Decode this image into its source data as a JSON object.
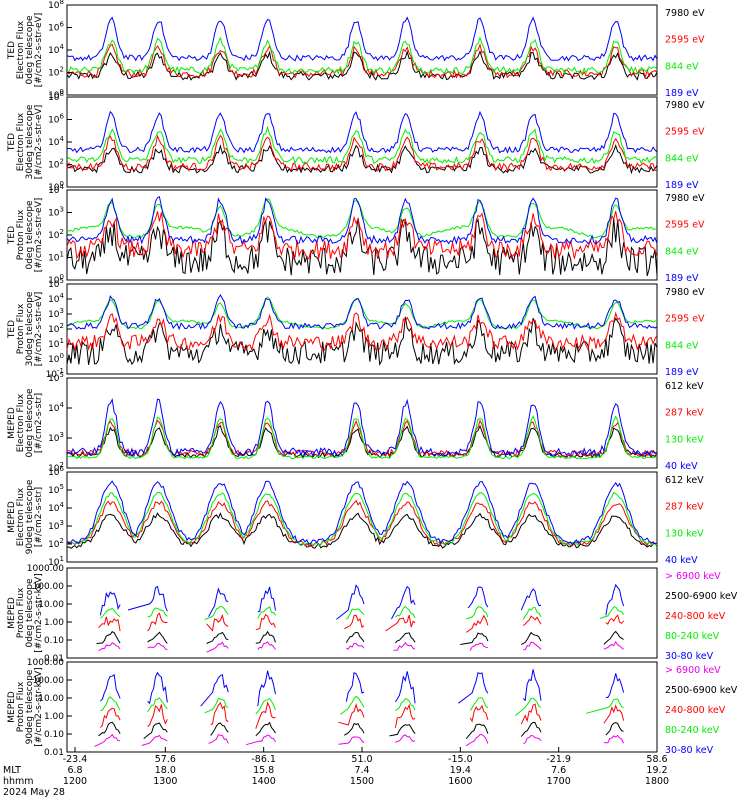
{
  "chart_data": {
    "type": "line",
    "date": "2024 May 28",
    "x_axis": {
      "rows": [
        {
          "label": "MLT",
          "values": [
            "6.8",
            "18.0",
            "15.8",
            "7.4",
            "19.4",
            "7.6",
            "19.2"
          ]
        },
        {
          "label": "hhmm",
          "values": [
            "1200",
            "1300",
            "1400",
            "1500",
            "1600",
            "1700",
            "1800"
          ]
        }
      ],
      "top_values": [
        "-23.4",
        "57.6",
        "-86.1",
        "51.0",
        "-15.0",
        "-21.9",
        "58.6"
      ]
    },
    "panels": [
      {
        "ylabel": [
          "TED",
          "Electron Flux",
          "0deg telescope",
          "[#/cm2-s-str-eV]"
        ],
        "ticks": [
          "10^8",
          "10^6",
          "10^4",
          "10^2",
          "10^0"
        ],
        "ylim_exp": [
          0,
          8
        ],
        "series": [
          {
            "name": "7980 eV",
            "color": "#000000",
            "base": 1.7,
            "peak": 3.6,
            "noise": 0.35,
            "kind": "flux"
          },
          {
            "name": "2595 eV",
            "color": "#ff0000",
            "base": 1.9,
            "peak": 4.2,
            "noise": 0.35,
            "kind": "flux"
          },
          {
            "name": "844 eV",
            "color": "#00ee00",
            "base": 2.2,
            "peak": 4.8,
            "noise": 0.3,
            "kind": "flux"
          },
          {
            "name": "189 eV",
            "color": "#0000ff",
            "base": 3.3,
            "peak": 6.7,
            "noise": 0.25,
            "kind": "flux"
          }
        ]
      },
      {
        "ylabel": [
          "TED",
          "Electron Flux",
          "30deg telescope",
          "[#/cm2-s-str-eV]"
        ],
        "ticks": [
          "10^8",
          "10^6",
          "10^4",
          "10^2",
          "10^0"
        ],
        "ylim_exp": [
          0,
          8
        ],
        "series": [
          {
            "name": "7980 eV",
            "color": "#000000",
            "base": 1.6,
            "peak": 3.4,
            "noise": 0.35,
            "kind": "flux"
          },
          {
            "name": "2595 eV",
            "color": "#ff0000",
            "base": 1.8,
            "peak": 4.3,
            "noise": 0.35,
            "kind": "flux"
          },
          {
            "name": "844 eV",
            "color": "#00ee00",
            "base": 2.4,
            "peak": 5.0,
            "noise": 0.3,
            "kind": "flux"
          },
          {
            "name": "189 eV",
            "color": "#0000ff",
            "base": 3.3,
            "peak": 6.5,
            "noise": 0.25,
            "kind": "flux"
          }
        ]
      },
      {
        "ylabel": [
          "TED",
          "Proton Flux",
          "0deg telescope",
          "[#/cm2-s-str-eV]"
        ],
        "ticks": [
          "10^4",
          "10^3",
          "10^2",
          "10^1",
          "10^0"
        ],
        "ylim_exp": [
          -0.4,
          4.3
        ],
        "series": [
          {
            "name": "7980 eV",
            "color": "#000000",
            "base": 0.6,
            "peak": 2.2,
            "noise": 0.8,
            "kind": "proton"
          },
          {
            "name": "2595 eV",
            "color": "#ff0000",
            "base": 1.2,
            "peak": 2.9,
            "noise": 0.5,
            "kind": "proton"
          },
          {
            "name": "844 eV",
            "color": "#00ee00",
            "base": 2.1,
            "peak": 3.6,
            "noise": 0.15,
            "kind": "proton_green"
          },
          {
            "name": "189 eV",
            "color": "#0000ff",
            "base": 1.7,
            "peak": 3.8,
            "noise": 0.2,
            "kind": "proton"
          }
        ]
      },
      {
        "ylabel": [
          "TED",
          "Proton Flux",
          "30deg telescope",
          "[#/cm2-s-str-eV]"
        ],
        "ticks": [
          "10^5",
          "10^4",
          "10^3",
          "10^2",
          "10^1",
          "10^0",
          "10^-1"
        ],
        "ylim_exp": [
          -1,
          5
        ],
        "series": [
          {
            "name": "7980 eV",
            "color": "#000000",
            "base": 0.4,
            "peak": 2.1,
            "noise": 0.8,
            "kind": "proton"
          },
          {
            "name": "2595 eV",
            "color": "#ff0000",
            "base": 1.1,
            "peak": 2.8,
            "noise": 0.5,
            "kind": "proton"
          },
          {
            "name": "844 eV",
            "color": "#00ee00",
            "base": 2.3,
            "peak": 3.9,
            "noise": 0.15,
            "kind": "proton_green"
          },
          {
            "name": "189 eV",
            "color": "#0000ff",
            "base": 2.2,
            "peak": 4.1,
            "noise": 0.2,
            "kind": "proton"
          }
        ]
      },
      {
        "ylabel": [
          "MEPED",
          "Electron Flux",
          "0deg telescope",
          "[#/cm2-s-str]"
        ],
        "ticks": [
          "10^5",
          "10^4",
          "10^3",
          "10^2"
        ],
        "ylim_exp": [
          1.6,
          5
        ],
        "series": [
          {
            "name": "612 keV",
            "color": "#000000",
            "base": 2.1,
            "peak": 3.1,
            "noise": 0.1,
            "kind": "meped0"
          },
          {
            "name": "287 keV",
            "color": "#ff0000",
            "base": 2.15,
            "peak": 3.3,
            "noise": 0.12,
            "kind": "meped0"
          },
          {
            "name": "130 keV",
            "color": "#00ee00",
            "base": 2.0,
            "peak": 3.5,
            "noise": 0.05,
            "kind": "meped0"
          },
          {
            "name": "40 keV",
            "color": "#0000ff",
            "base": 2.2,
            "peak": 4.1,
            "noise": 0.15,
            "kind": "meped0"
          }
        ]
      },
      {
        "ylabel": [
          "MEPED",
          "Electron Flux",
          "90deg telescope",
          "[#/cm2-s-str]"
        ],
        "ticks": [
          "10^6",
          "10^5",
          "10^4",
          "10^3",
          "10^2",
          "10^1"
        ],
        "ylim_exp": [
          1,
          6
        ],
        "series": [
          {
            "name": "612 keV",
            "color": "#000000",
            "base": 1.9,
            "peak": 3.6,
            "noise": 0.15,
            "kind": "meped90"
          },
          {
            "name": "287 keV",
            "color": "#ff0000",
            "base": 2.0,
            "peak": 4.3,
            "noise": 0.15,
            "kind": "meped90"
          },
          {
            "name": "130 keV",
            "color": "#00ee00",
            "base": 2.0,
            "peak": 4.8,
            "noise": 0.1,
            "kind": "meped90"
          },
          {
            "name": "40 keV",
            "color": "#0000ff",
            "base": 2.1,
            "peak": 5.4,
            "noise": 0.15,
            "kind": "meped90"
          }
        ]
      },
      {
        "ylabel": [
          "MEPED",
          "Proton Flux",
          "0deg telescope",
          "[#/cm2-s-str-keV]"
        ],
        "ticks": [
          "1000.00",
          "100.00",
          "10.00",
          "1.00",
          "0.10",
          "0.01"
        ],
        "ylim_exp": [
          -2,
          3
        ],
        "series": [
          {
            "name": "> 6900 keV",
            "color": "#ee00ee",
            "base": -1.6,
            "peak": -1.2,
            "noise": 0.1,
            "kind": "pmag"
          },
          {
            "name": "2500-6900 keV",
            "color": "#000000",
            "base": -1.3,
            "peak": -0.6,
            "noise": 0.1,
            "kind": "pblk"
          },
          {
            "name": "240-800 keV",
            "color": "#ff0000",
            "base": -0.4,
            "peak": 0.2,
            "noise": 0.3,
            "kind": "pred"
          },
          {
            "name": "80-240 keV",
            "color": "#00ee00",
            "base": 0.1,
            "peak": 0.8,
            "noise": 0.1,
            "kind": "pgrn"
          },
          {
            "name": "30-80 keV",
            "color": "#0000ff",
            "base": 0.4,
            "peak": 1.8,
            "noise": 0.3,
            "kind": "pblu"
          }
        ]
      },
      {
        "ylabel": [
          "MEPED",
          "Proton Flux",
          "90deg telescope",
          "[#/cm2-s-str-keV]"
        ],
        "ticks": [
          "1000.00",
          "100.00",
          "10.00",
          "1.00",
          "0.10",
          "0.01"
        ],
        "ylim_exp": [
          -2,
          3
        ],
        "series": [
          {
            "name": "> 6900 keV",
            "color": "#ee00ee",
            "base": -1.6,
            "peak": -1.1,
            "noise": 0.1,
            "kind": "pmag"
          },
          {
            "name": "2500-6900 keV",
            "color": "#000000",
            "base": -1.2,
            "peak": -0.4,
            "noise": 0.1,
            "kind": "pblk"
          },
          {
            "name": "240-800 keV",
            "color": "#ff0000",
            "base": -0.6,
            "peak": 0.5,
            "noise": 0.3,
            "kind": "pred"
          },
          {
            "name": "80-240 keV",
            "color": "#00ee00",
            "base": 0.1,
            "peak": 1.0,
            "noise": 0.1,
            "kind": "pgrn"
          },
          {
            "name": "30-80 keV",
            "color": "#0000ff",
            "base": 0.5,
            "peak": 2.3,
            "noise": 0.3,
            "kind": "pblu"
          }
        ]
      }
    ],
    "events": [
      0.075,
      0.155,
      0.26,
      0.34,
      0.49,
      0.575,
      0.7,
      0.79,
      0.93
    ]
  }
}
